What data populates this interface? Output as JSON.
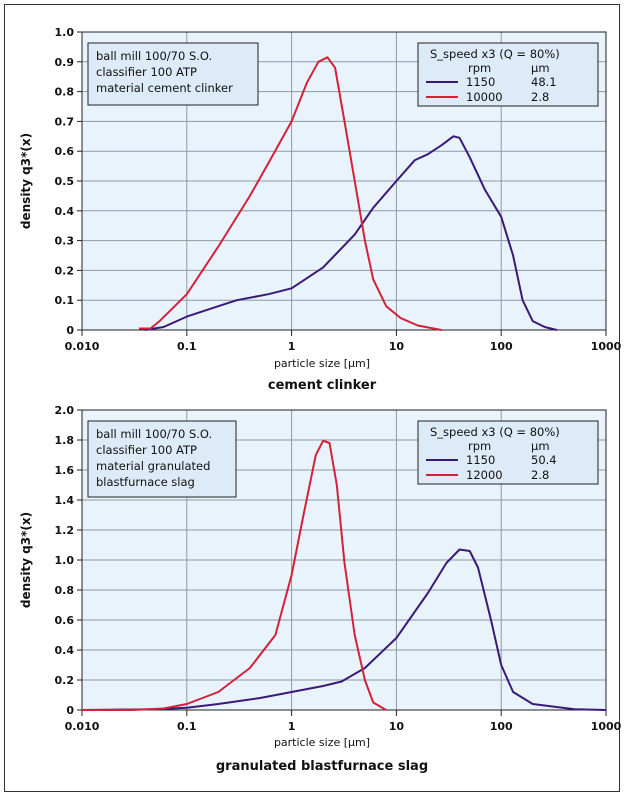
{
  "chart_data": [
    {
      "type": "line",
      "title": "cement clinker",
      "xlabel": "particle size [µm]",
      "ylabel": "density q3*(x)",
      "x_scale": "log",
      "xlim": [
        0.01,
        1000
      ],
      "ylim": [
        0,
        1.0
      ],
      "x_ticks": [
        "0.010",
        "0.1",
        "1",
        "10",
        "100",
        "1000"
      ],
      "y_ticks": [
        "0",
        "0.1",
        "0.2",
        "0.3",
        "0.4",
        "0.5",
        "0.6",
        "0.7",
        "0.8",
        "0.9",
        "1.0"
      ],
      "grid": true,
      "info_box": [
        "ball mill 100/70 S.O.",
        "classifier 100 ATP",
        "material cement clinker"
      ],
      "legend": {
        "title": "S_speed x3 (Q = 80%)",
        "col1": "rpm",
        "col2": "µm",
        "entries": [
          {
            "rpm": "1150",
            "um": "48.1",
            "color": "#3a1a78"
          },
          {
            "rpm": "10000",
            "um": "2.8",
            "color": "#d4213a"
          }
        ]
      },
      "series": [
        {
          "color": "#3a1a78",
          "points": [
            [
              0.04,
              0.0
            ],
            [
              0.06,
              0.01
            ],
            [
              0.1,
              0.045
            ],
            [
              0.2,
              0.08
            ],
            [
              0.3,
              0.1
            ],
            [
              0.6,
              0.12
            ],
            [
              1.0,
              0.14
            ],
            [
              2.0,
              0.21
            ],
            [
              4.0,
              0.32
            ],
            [
              6.0,
              0.41
            ],
            [
              10.0,
              0.5
            ],
            [
              15.0,
              0.57
            ],
            [
              20.0,
              0.59
            ],
            [
              27.0,
              0.62
            ],
            [
              35.0,
              0.65
            ],
            [
              40.0,
              0.645
            ],
            [
              50.0,
              0.58
            ],
            [
              70.0,
              0.47
            ],
            [
              100.0,
              0.38
            ],
            [
              130.0,
              0.25
            ],
            [
              160.0,
              0.1
            ],
            [
              200.0,
              0.03
            ],
            [
              260.0,
              0.01
            ],
            [
              340.0,
              0.0
            ]
          ]
        },
        {
          "color": "#d4213a",
          "points": [
            [
              0.035,
              0.005
            ],
            [
              0.045,
              0.005
            ],
            [
              0.055,
              0.03
            ],
            [
              0.1,
              0.12
            ],
            [
              0.2,
              0.28
            ],
            [
              0.4,
              0.45
            ],
            [
              0.6,
              0.56
            ],
            [
              1.0,
              0.7
            ],
            [
              1.4,
              0.83
            ],
            [
              1.8,
              0.9
            ],
            [
              2.2,
              0.915
            ],
            [
              2.6,
              0.88
            ],
            [
              3.2,
              0.7
            ],
            [
              4.0,
              0.5
            ],
            [
              5.0,
              0.3
            ],
            [
              6.0,
              0.17
            ],
            [
              8.0,
              0.08
            ],
            [
              11.0,
              0.04
            ],
            [
              16.0,
              0.015
            ],
            [
              27.0,
              0.0
            ]
          ]
        }
      ]
    },
    {
      "type": "line",
      "title": "granulated blastfurnace slag",
      "xlabel": "particle size [µm]",
      "ylabel": "density q3*(x)",
      "x_scale": "log",
      "xlim": [
        0.01,
        1000
      ],
      "ylim": [
        0,
        2.0
      ],
      "x_ticks": [
        "0.010",
        "0.1",
        "1",
        "10",
        "100",
        "1000"
      ],
      "y_ticks": [
        "0",
        "0.2",
        "0.4",
        "0.6",
        "0.8",
        "1.0",
        "1.2",
        "1.4",
        "1.6",
        "1.8",
        "2.0"
      ],
      "grid": true,
      "info_box": [
        "ball mill 100/70 S.O.",
        "classifier 100 ATP",
        "material granulated",
        "blastfurnace slag"
      ],
      "legend": {
        "title": "S_speed x3 (Q = 80%)",
        "col1": "rpm",
        "col2": "µm",
        "entries": [
          {
            "rpm": "1150",
            "um": "50.4",
            "color": "#3a1a78"
          },
          {
            "rpm": "12000",
            "um": "2.8",
            "color": "#d4213a"
          }
        ]
      },
      "series": [
        {
          "color": "#3a1a78",
          "points": [
            [
              0.01,
              0.0
            ],
            [
              0.05,
              0.005
            ],
            [
              0.1,
              0.015
            ],
            [
              0.2,
              0.04
            ],
            [
              0.5,
              0.08
            ],
            [
              1.0,
              0.12
            ],
            [
              2.0,
              0.16
            ],
            [
              3.0,
              0.19
            ],
            [
              5.0,
              0.28
            ],
            [
              10.0,
              0.48
            ],
            [
              20.0,
              0.78
            ],
            [
              30.0,
              0.98
            ],
            [
              40.0,
              1.07
            ],
            [
              50.0,
              1.06
            ],
            [
              60.0,
              0.95
            ],
            [
              80.0,
              0.6
            ],
            [
              100.0,
              0.3
            ],
            [
              130.0,
              0.12
            ],
            [
              200.0,
              0.04
            ],
            [
              500.0,
              0.005
            ],
            [
              1000.0,
              0.0
            ]
          ]
        },
        {
          "color": "#d4213a",
          "points": [
            [
              0.01,
              0.0
            ],
            [
              0.03,
              0.0
            ],
            [
              0.06,
              0.01
            ],
            [
              0.1,
              0.04
            ],
            [
              0.2,
              0.12
            ],
            [
              0.4,
              0.28
            ],
            [
              0.7,
              0.5
            ],
            [
              1.0,
              0.9
            ],
            [
              1.3,
              1.3
            ],
            [
              1.7,
              1.7
            ],
            [
              2.0,
              1.795
            ],
            [
              2.3,
              1.78
            ],
            [
              2.7,
              1.5
            ],
            [
              3.2,
              0.98
            ],
            [
              4.0,
              0.5
            ],
            [
              5.0,
              0.2
            ],
            [
              6.0,
              0.05
            ],
            [
              8.0,
              0.0
            ]
          ]
        }
      ]
    }
  ]
}
